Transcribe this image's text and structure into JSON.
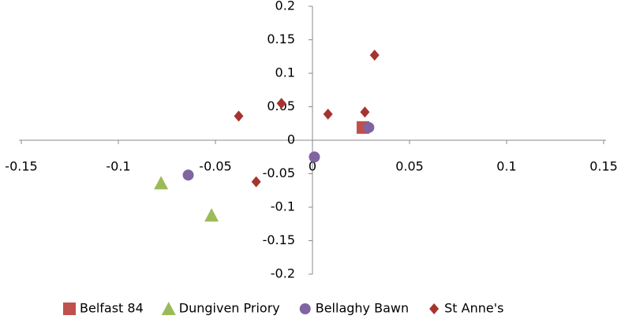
{
  "chart_data": {
    "type": "scatter",
    "xlim": [
      -0.15,
      0.15
    ],
    "xticks": [
      -0.15,
      -0.1,
      -0.05,
      0,
      0.05,
      0.1,
      0.15
    ],
    "ylim": [
      -0.2,
      0.2
    ],
    "yticks": [
      -0.2,
      -0.15,
      -0.1,
      -0.05,
      0,
      0.05,
      0.1,
      0.15,
      0.2
    ],
    "legend": "bottom",
    "series": [
      {
        "name": "Belfast 84",
        "color": "#c0504d",
        "marker": "square",
        "x": [
          0.026
        ],
        "values": [
          0.019
        ]
      },
      {
        "name": "Dungiven Priory",
        "color": "#9bbb59",
        "marker": "triangle",
        "x": [
          -0.078,
          -0.052
        ],
        "values": [
          -0.064,
          -0.112
        ]
      },
      {
        "name": "Bellaghy Bawn",
        "color": "#8064a2",
        "marker": "circle",
        "x": [
          -0.064,
          0.001,
          0.029
        ],
        "values": [
          -0.052,
          -0.025,
          0.019
        ]
      },
      {
        "name": "St Anne's",
        "color": "#a5342f",
        "marker": "diamond",
        "x": [
          0.032,
          -0.038,
          -0.016,
          0.008,
          0.027,
          -0.029
        ],
        "values": [
          0.127,
          0.036,
          0.055,
          0.039,
          0.042,
          -0.062
        ]
      }
    ]
  }
}
